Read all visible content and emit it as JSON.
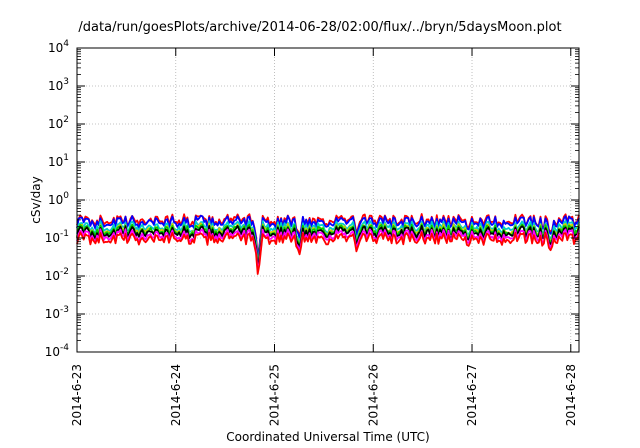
{
  "chart_data": {
    "type": "line",
    "title": "/data/run/goesPlots/archive/2014-06-28/02:00/flux/../bryn/5daysMoon.plot",
    "xlabel": "Coordinated Universal Time (UTC)",
    "ylabel": "cSv/day",
    "yscale": "log",
    "ylim": [
      0.0001,
      10000
    ],
    "y_ticks": [
      {
        "base": "10",
        "exp": "-4"
      },
      {
        "base": "10",
        "exp": "-3"
      },
      {
        "base": "10",
        "exp": "-2"
      },
      {
        "base": "10",
        "exp": "-1"
      },
      {
        "base": "10",
        "exp": "0"
      },
      {
        "base": "10",
        "exp": "1"
      },
      {
        "base": "10",
        "exp": "2"
      },
      {
        "base": "10",
        "exp": "3"
      },
      {
        "base": "10",
        "exp": "4"
      }
    ],
    "x_ticks": [
      "2014-6-23",
      "2014-6-24",
      "2014-6-25",
      "2014-6-26",
      "2014-6-27",
      "2014-6-28"
    ],
    "xlim": [
      "2014-6-23",
      "2014-6-28 02:00"
    ],
    "grid": true,
    "series": [
      {
        "color": "#ff0000",
        "level": 0.3
      },
      {
        "color": "#0000ff",
        "level": 0.27
      },
      {
        "color": "#00cccc",
        "level": 0.2
      },
      {
        "color": "#cccc00",
        "level": 0.17
      },
      {
        "color": "#00cc00",
        "level": 0.16
      },
      {
        "color": "#000000",
        "level": 0.145
      },
      {
        "color": "#ff00ff",
        "level": 0.12
      },
      {
        "color": "#ff0000",
        "level": 0.1
      }
    ],
    "dips": [
      {
        "x": "2014-6-24 20:00",
        "y": 0.011
      },
      {
        "x": "2014-6-25 06:00",
        "y": 0.04
      },
      {
        "x": "2014-6-25 20:00",
        "y": 0.05
      },
      {
        "x": "2014-6-26 23:00",
        "y": 0.065
      },
      {
        "x": "2014-6-27 19:00",
        "y": 0.055
      }
    ]
  }
}
